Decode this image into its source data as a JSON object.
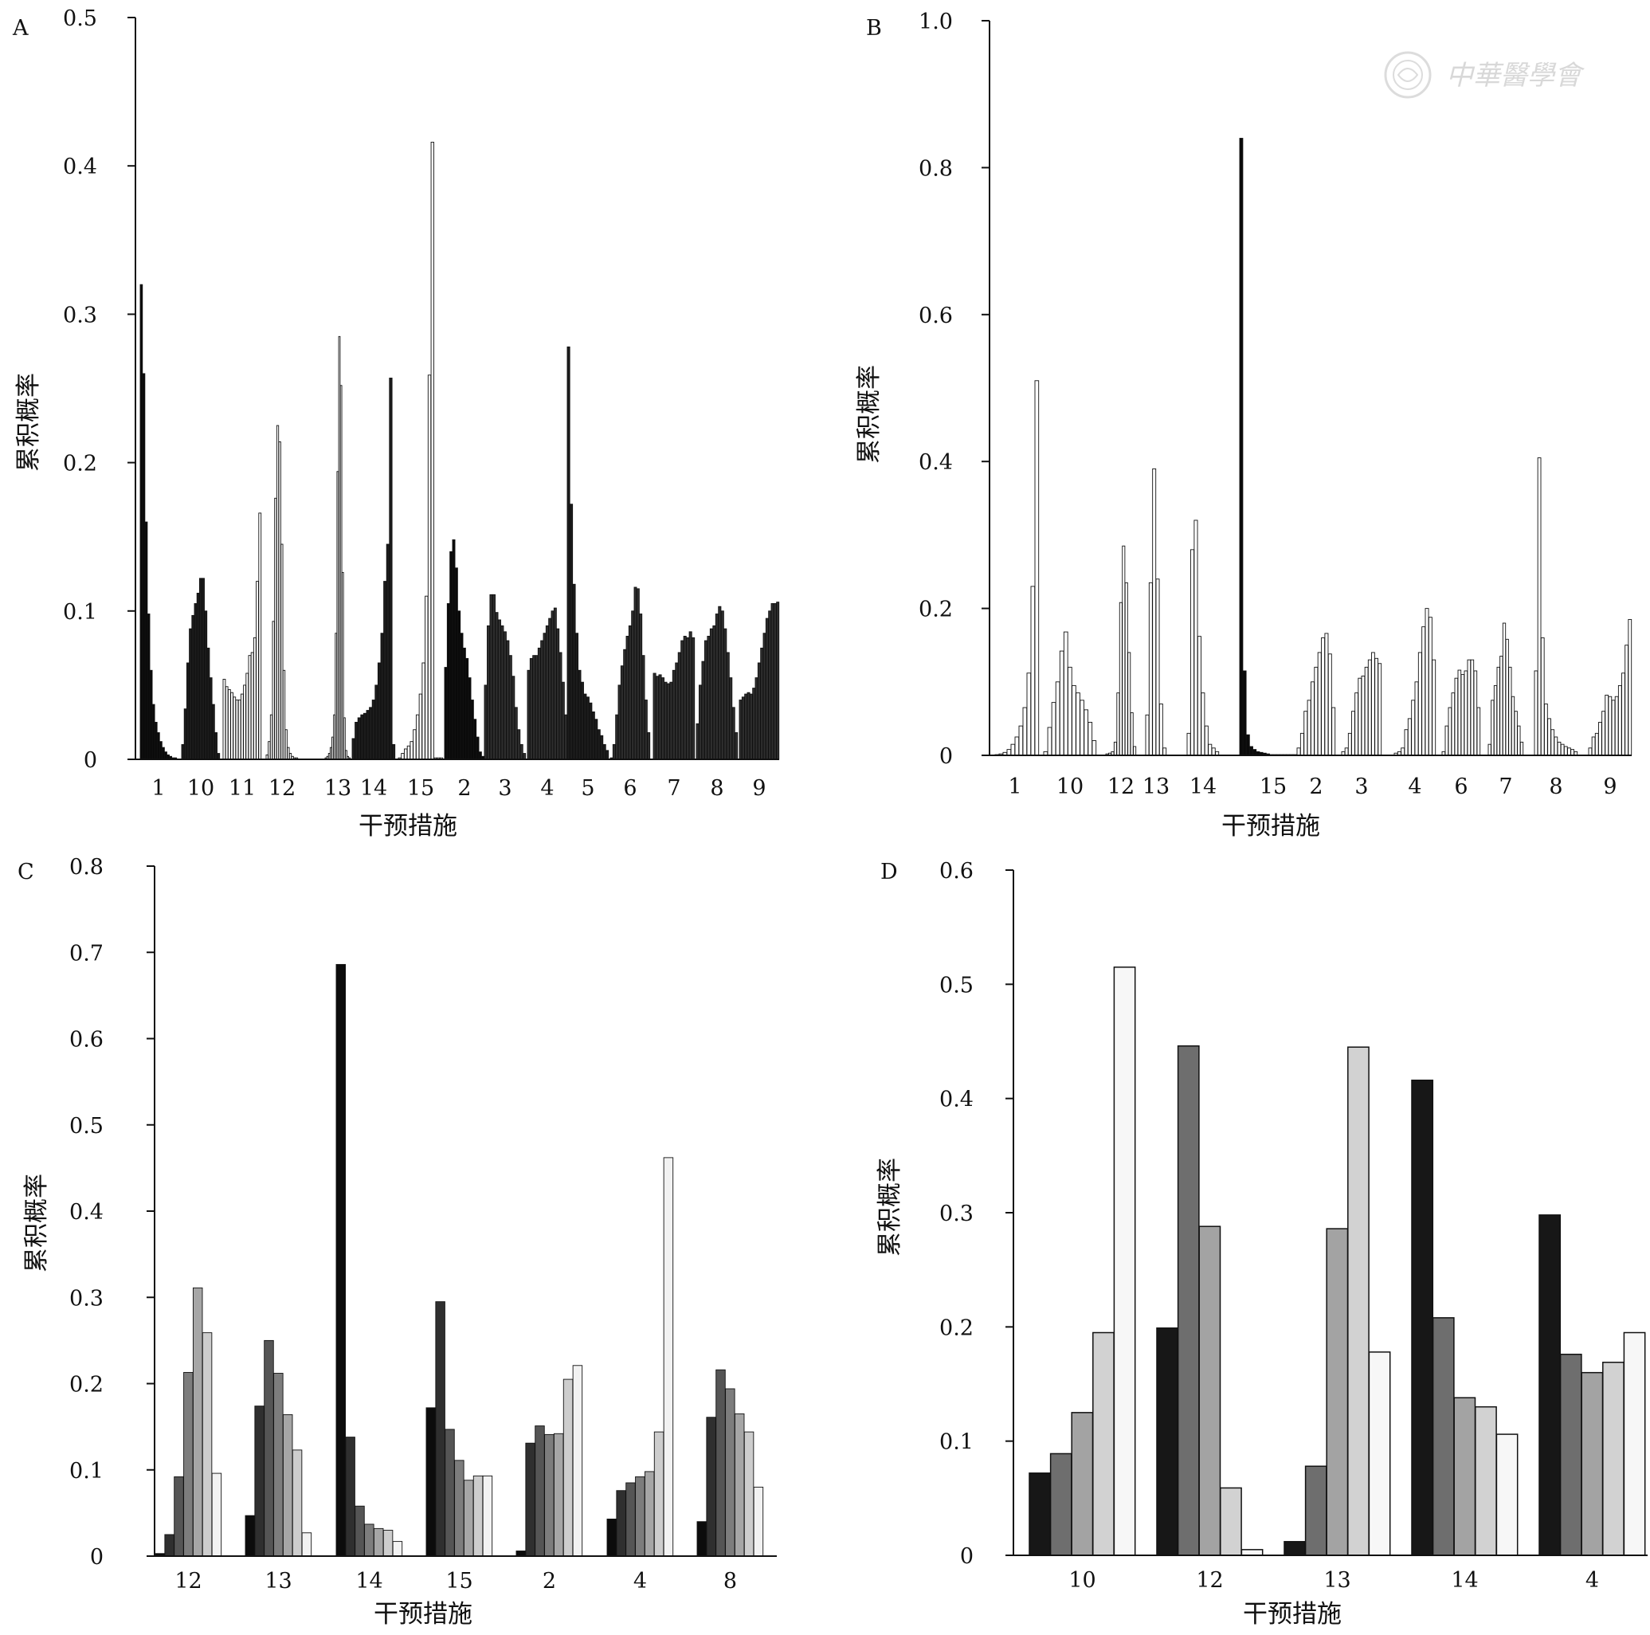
{
  "watermark": {
    "text": "中華醫學會"
  },
  "styles": {
    "bar_stroke": "#111111",
    "palette_A": [
      "#0a0a0a",
      "#1c1c1c",
      "#2e2e2e",
      "#ffffff"
    ],
    "palette_B": [
      "#0a0a0a",
      "#ffffff"
    ],
    "palette_C": [
      "#0c0c0c",
      "#2f2f2f",
      "#555555",
      "#7d7d7d",
      "#a6a6a6",
      "#cdcdcd",
      "#f2f2f2"
    ],
    "palette_D": [
      "#171717",
      "#6e6e6e",
      "#a3a3a3",
      "#d2d2d2",
      "#f7f7f7"
    ]
  },
  "chart_data": [
    {
      "panel": "A",
      "type": "bar",
      "xlabel": "干预措施",
      "ylabel": "累积概率",
      "ylim": [
        0,
        0.5
      ],
      "yticks": [
        "0",
        "0.1",
        "0.2",
        "0.3",
        "0.4",
        "0.5"
      ],
      "categories": [
        "1",
        "10",
        "11",
        "12",
        "13",
        "14",
        "15",
        "2",
        "3",
        "4",
        "5",
        "6",
        "7",
        "8",
        "9"
      ],
      "values": [
        [
          0.32,
          0.26,
          0.16,
          0.098,
          0.06,
          0.037,
          0.025,
          0.018,
          0.012,
          0.008,
          0.005,
          0.003,
          0.002,
          0.001,
          0.001
        ],
        [
          0.01,
          0.034,
          0.065,
          0.088,
          0.097,
          0.105,
          0.112,
          0.122,
          0.122,
          0.1,
          0.075,
          0.055,
          0.037,
          0.018,
          0.004
        ],
        [
          0.054,
          0.049,
          0.047,
          0.045,
          0.042,
          0.04,
          0.04,
          0.044,
          0.05,
          0.058,
          0.07,
          0.072,
          0.082,
          0.12,
          0.166
        ],
        [
          0.003,
          0.012,
          0.03,
          0.093,
          0.176,
          0.225,
          0.214,
          0.145,
          0.06,
          0.02,
          0.008,
          0.004,
          0.002,
          0.001,
          0.001
        ],
        [
          0.001,
          0.002,
          0.004,
          0.008,
          0.015,
          0.03,
          0.085,
          0.194,
          0.285,
          0.252,
          0.126,
          0.028,
          0.006,
          0.002,
          0.001
        ],
        [
          0.014,
          0.025,
          0.028,
          0.03,
          0.031,
          0.033,
          0.035,
          0.04,
          0.05,
          0.065,
          0.085,
          0.12,
          0.145,
          0.257,
          0.01
        ],
        [
          0.001,
          0.004,
          0.007,
          0.009,
          0.012,
          0.02,
          0.03,
          0.044,
          0.065,
          0.11,
          0.259,
          0.416,
          0.001,
          0.001,
          0.001
        ],
        [
          0.062,
          0.105,
          0.14,
          0.148,
          0.129,
          0.1,
          0.085,
          0.075,
          0.068,
          0.055,
          0.04,
          0.027,
          0.015,
          0.005,
          0.002
        ],
        [
          0.05,
          0.09,
          0.111,
          0.111,
          0.099,
          0.094,
          0.09,
          0.086,
          0.08,
          0.07,
          0.056,
          0.035,
          0.02,
          0.01,
          0.004
        ],
        [
          0.06,
          0.068,
          0.07,
          0.07,
          0.075,
          0.08,
          0.085,
          0.09,
          0.095,
          0.1,
          0.102,
          0.088,
          0.072,
          0.052,
          0.03
        ],
        [
          0.278,
          0.172,
          0.118,
          0.085,
          0.06,
          0.052,
          0.044,
          0.042,
          0.038,
          0.032,
          0.027,
          0.02,
          0.016,
          0.01,
          0.006
        ],
        [
          0.001,
          0.01,
          0.03,
          0.05,
          0.063,
          0.074,
          0.083,
          0.09,
          0.1,
          0.116,
          0.115,
          0.098,
          0.07,
          0.04,
          0.018
        ],
        [
          0.058,
          0.056,
          0.057,
          0.055,
          0.052,
          0.051,
          0.052,
          0.06,
          0.065,
          0.072,
          0.08,
          0.083,
          0.082,
          0.086,
          0.082
        ],
        [
          0.024,
          0.05,
          0.066,
          0.08,
          0.083,
          0.088,
          0.09,
          0.098,
          0.103,
          0.1,
          0.088,
          0.072,
          0.055,
          0.035,
          0.018
        ],
        [
          0.04,
          0.042,
          0.044,
          0.045,
          0.044,
          0.048,
          0.055,
          0.065,
          0.075,
          0.085,
          0.095,
          0.1,
          0.105,
          0.105,
          0.106
        ]
      ]
    },
    {
      "panel": "B",
      "type": "bar",
      "xlabel": "干预措施",
      "ylabel": "累积概率",
      "ylim": [
        0,
        1.0
      ],
      "yticks": [
        "0",
        "0.2",
        "0.4",
        "0.6",
        "0.8",
        "1.0"
      ],
      "categories": [
        "1",
        "10",
        "12",
        "13",
        "14",
        "15",
        "2",
        "3",
        "4",
        "6",
        "7",
        "8",
        "9"
      ],
      "values": [
        [
          0,
          0.001,
          0.002,
          0.004,
          0.008,
          0.015,
          0.025,
          0.04,
          0.065,
          0.112,
          0.23,
          0.51
        ],
        [
          0.005,
          0.038,
          0.072,
          0.1,
          0.142,
          0.168,
          0.12,
          0.095,
          0.085,
          0.075,
          0.062,
          0.045,
          0.02
        ],
        [
          0.002,
          0.003,
          0.005,
          0.018,
          0.085,
          0.208,
          0.285,
          0.235,
          0.14,
          0.058,
          0.012
        ],
        [
          0.055,
          0.235,
          0.39,
          0.24,
          0.07,
          0.01
        ],
        [
          0.03,
          0.28,
          0.32,
          0.162,
          0.085,
          0.04,
          0.015,
          0.01,
          0.005
        ],
        [
          0.84,
          0.115,
          0.028,
          0.012,
          0.008,
          0.005,
          0.004,
          0.003,
          0.002,
          0.001,
          0.001,
          0.001,
          0.001,
          0.001,
          0.001,
          0.001,
          0.001,
          0.001,
          0.001,
          0.001
        ],
        [
          0.01,
          0.03,
          0.06,
          0.075,
          0.1,
          0.12,
          0.14,
          0.16,
          0.166,
          0.138,
          0.065
        ],
        [
          0.005,
          0.01,
          0.03,
          0.06,
          0.085,
          0.105,
          0.108,
          0.12,
          0.13,
          0.14,
          0.132,
          0.125
        ],
        [
          0.003,
          0.005,
          0.01,
          0.035,
          0.05,
          0.075,
          0.1,
          0.14,
          0.175,
          0.2,
          0.188,
          0.13
        ],
        [
          0.005,
          0.04,
          0.065,
          0.085,
          0.105,
          0.116,
          0.11,
          0.115,
          0.13,
          0.13,
          0.115,
          0.065
        ],
        [
          0.015,
          0.075,
          0.095,
          0.12,
          0.135,
          0.18,
          0.158,
          0.12,
          0.08,
          0.06,
          0.04,
          0.018
        ],
        [
          0.115,
          0.405,
          0.16,
          0.07,
          0.05,
          0.035,
          0.025,
          0.018,
          0.015,
          0.012,
          0.01,
          0.008,
          0.005
        ],
        [
          0.01,
          0.025,
          0.03,
          0.045,
          0.06,
          0.082,
          0.08,
          0.075,
          0.08,
          0.095,
          0.112,
          0.15,
          0.185
        ]
      ]
    },
    {
      "panel": "C",
      "type": "bar",
      "xlabel": "干预措施",
      "ylabel": "累积概率",
      "ylim": [
        0,
        0.8
      ],
      "yticks": [
        "0",
        "0.1",
        "0.2",
        "0.3",
        "0.4",
        "0.5",
        "0.6",
        "0.7",
        "0.8"
      ],
      "categories": [
        "12",
        "13",
        "14",
        "15",
        "2",
        "4",
        "8"
      ],
      "values": [
        [
          0.003,
          0.025,
          0.092,
          0.213,
          0.311,
          0.259,
          0.096
        ],
        [
          0.047,
          0.174,
          0.25,
          0.212,
          0.164,
          0.123,
          0.027
        ],
        [
          0.686,
          0.138,
          0.058,
          0.037,
          0.032,
          0.03,
          0.017
        ],
        [
          0.172,
          0.295,
          0.147,
          0.111,
          0.088,
          0.093,
          0.093
        ],
        [
          0.006,
          0.131,
          0.151,
          0.141,
          0.142,
          0.205,
          0.221
        ],
        [
          0.043,
          0.076,
          0.085,
          0.092,
          0.098,
          0.144,
          0.462
        ],
        [
          0.04,
          0.161,
          0.216,
          0.194,
          0.165,
          0.144,
          0.08
        ]
      ]
    },
    {
      "panel": "D",
      "type": "bar",
      "xlabel": "干预措施",
      "ylabel": "累积概率",
      "ylim": [
        0,
        0.6
      ],
      "yticks": [
        "0",
        "0.1",
        "0.2",
        "0.3",
        "0.4",
        "0.5",
        "0.6"
      ],
      "categories": [
        "10",
        "12",
        "13",
        "14",
        "4"
      ],
      "values": [
        [
          0.072,
          0.089,
          0.125,
          0.195,
          0.515
        ],
        [
          0.199,
          0.446,
          0.288,
          0.059,
          0.005
        ],
        [
          0.012,
          0.078,
          0.286,
          0.445,
          0.178
        ],
        [
          0.416,
          0.208,
          0.138,
          0.13,
          0.106
        ],
        [
          0.298,
          0.176,
          0.16,
          0.169,
          0.195
        ]
      ]
    }
  ]
}
